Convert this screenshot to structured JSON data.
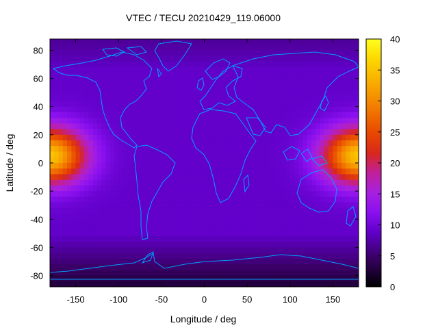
{
  "chart_data": {
    "type": "heatmap",
    "title": "VTEC / TECU 20210429_119.06000",
    "xlabel": "Longitude / deg",
    "ylabel": "Latitude / deg",
    "xlim": [
      -180,
      180
    ],
    "ylim": [
      -88,
      88
    ],
    "x_ticks": [
      -150,
      -100,
      -50,
      0,
      50,
      100,
      150
    ],
    "y_ticks": [
      -80,
      -60,
      -40,
      -20,
      0,
      20,
      40,
      60,
      80
    ],
    "colorbar": {
      "range": [
        0,
        40
      ],
      "ticks": [
        0,
        5,
        10,
        15,
        20,
        25,
        30,
        35,
        40
      ],
      "palette": "gnuplot-pm3d-black-purple-red-yellow"
    },
    "coastline_color": "#00a0ff",
    "field": {
      "background": 9,
      "hotspots": [
        {
          "lon": -180,
          "lat": 5,
          "peak": 35,
          "lon_sigma": 30,
          "lat_sigma": 14
        },
        {
          "lon": 180,
          "lat": 5,
          "peak": 35,
          "lon_sigma": 30,
          "lat_sigma": 14
        }
      ],
      "polar_minimum": {
        "lat": -85,
        "value": 3
      }
    }
  }
}
